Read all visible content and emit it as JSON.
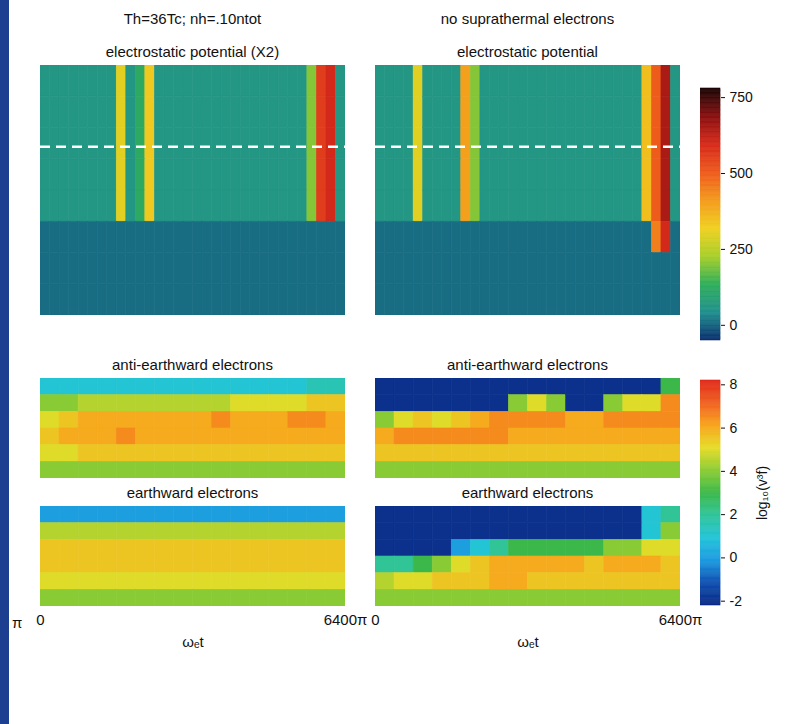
{
  "chart_data": [
    {
      "type": "heatmap",
      "header": "Th=36Tc; nh=.10ntot",
      "title": "electrostatic potential (X2)",
      "xlim": [
        0,
        6400
      ],
      "tick_labels": false,
      "color_range": [
        -50,
        780
      ],
      "bins": [
        0,
        200,
        400,
        600,
        800,
        1000,
        1200,
        1400,
        1600,
        1800,
        2000,
        2200,
        2400,
        2600,
        2800,
        3000,
        3200,
        3400,
        3600,
        3800,
        4000,
        4200,
        4400,
        4600,
        4800,
        5000,
        5200,
        5400,
        5600,
        5800,
        6000,
        6200,
        6400
      ],
      "reference_line": {
        "y": 2.6,
        "color": "white",
        "line_style": "dashed"
      },
      "cells": [
        [
          60,
          60,
          60,
          60,
          60,
          60,
          60,
          60,
          300,
          60,
          120,
          330,
          60,
          60,
          60,
          60,
          60,
          60,
          60,
          60,
          60,
          60,
          60,
          60,
          60,
          60,
          60,
          60,
          200,
          560,
          600,
          60
        ],
        [
          60,
          60,
          60,
          60,
          60,
          60,
          60,
          60,
          300,
          60,
          120,
          330,
          60,
          60,
          60,
          60,
          60,
          60,
          60,
          60,
          60,
          60,
          60,
          60,
          60,
          60,
          60,
          60,
          200,
          560,
          600,
          60
        ],
        [
          60,
          60,
          60,
          60,
          60,
          60,
          60,
          60,
          300,
          60,
          120,
          330,
          60,
          60,
          60,
          60,
          60,
          60,
          60,
          60,
          60,
          60,
          60,
          60,
          60,
          60,
          60,
          60,
          200,
          560,
          600,
          60
        ],
        [
          60,
          60,
          60,
          60,
          60,
          60,
          60,
          60,
          300,
          60,
          120,
          330,
          60,
          60,
          60,
          60,
          60,
          60,
          60,
          60,
          60,
          60,
          60,
          60,
          60,
          60,
          60,
          60,
          200,
          560,
          600,
          60
        ],
        [
          60,
          60,
          60,
          60,
          60,
          60,
          60,
          60,
          300,
          60,
          120,
          330,
          60,
          60,
          60,
          60,
          60,
          60,
          60,
          60,
          60,
          60,
          60,
          60,
          60,
          60,
          60,
          60,
          200,
          560,
          600,
          60
        ],
        [
          10,
          10,
          10,
          10,
          10,
          10,
          10,
          10,
          10,
          10,
          10,
          10,
          10,
          10,
          10,
          10,
          10,
          10,
          10,
          10,
          10,
          10,
          10,
          10,
          10,
          10,
          10,
          10,
          10,
          10,
          10,
          10
        ],
        [
          10,
          10,
          10,
          10,
          10,
          10,
          10,
          10,
          10,
          10,
          10,
          10,
          10,
          10,
          10,
          10,
          10,
          10,
          10,
          10,
          10,
          10,
          10,
          10,
          10,
          10,
          10,
          10,
          10,
          10,
          10,
          10
        ],
        [
          10,
          10,
          10,
          10,
          10,
          10,
          10,
          10,
          10,
          10,
          10,
          10,
          10,
          10,
          10,
          10,
          10,
          10,
          10,
          10,
          10,
          10,
          10,
          10,
          10,
          10,
          10,
          10,
          10,
          10,
          10,
          10
        ]
      ]
    },
    {
      "type": "heatmap",
      "header": "no suprathermal electrons",
      "title": "electrostatic potential",
      "xlim": [
        0,
        6400
      ],
      "tick_labels": false,
      "color_range": [
        -50,
        780
      ],
      "bins": [
        0,
        200,
        400,
        600,
        800,
        1000,
        1200,
        1400,
        1600,
        1800,
        2000,
        2200,
        2400,
        2600,
        2800,
        3000,
        3200,
        3400,
        3600,
        3800,
        4000,
        4200,
        4400,
        4600,
        4800,
        5000,
        5200,
        5400,
        5600,
        5800,
        6000,
        6200,
        6400
      ],
      "reference_line": {
        "y": 2.6,
        "color": "white",
        "line_style": "dashed"
      },
      "cells": [
        [
          60,
          60,
          60,
          60,
          300,
          60,
          60,
          60,
          60,
          400,
          200,
          60,
          60,
          60,
          60,
          60,
          60,
          60,
          60,
          60,
          60,
          60,
          60,
          60,
          60,
          60,
          60,
          60,
          350,
          500,
          650,
          60
        ],
        [
          60,
          60,
          60,
          60,
          300,
          60,
          60,
          60,
          60,
          400,
          200,
          60,
          60,
          60,
          60,
          60,
          60,
          60,
          60,
          60,
          60,
          60,
          60,
          60,
          60,
          60,
          60,
          60,
          350,
          500,
          650,
          60
        ],
        [
          60,
          60,
          60,
          60,
          300,
          60,
          60,
          60,
          60,
          400,
          200,
          60,
          60,
          60,
          60,
          60,
          60,
          60,
          60,
          60,
          60,
          60,
          60,
          60,
          60,
          60,
          60,
          60,
          350,
          500,
          650,
          60
        ],
        [
          60,
          60,
          60,
          60,
          300,
          60,
          60,
          60,
          60,
          400,
          200,
          60,
          60,
          60,
          60,
          60,
          60,
          60,
          60,
          60,
          60,
          60,
          60,
          60,
          60,
          60,
          60,
          60,
          350,
          500,
          650,
          60
        ],
        [
          60,
          60,
          60,
          60,
          300,
          60,
          60,
          60,
          60,
          400,
          200,
          60,
          60,
          60,
          60,
          60,
          60,
          60,
          60,
          60,
          60,
          60,
          60,
          60,
          60,
          60,
          60,
          60,
          350,
          500,
          650,
          60
        ],
        [
          10,
          10,
          10,
          10,
          10,
          10,
          10,
          10,
          10,
          10,
          10,
          10,
          10,
          10,
          10,
          10,
          10,
          10,
          10,
          10,
          10,
          10,
          10,
          10,
          10,
          10,
          10,
          10,
          10,
          450,
          600,
          10
        ],
        [
          10,
          10,
          10,
          10,
          10,
          10,
          10,
          10,
          10,
          10,
          10,
          10,
          10,
          10,
          10,
          10,
          10,
          10,
          10,
          10,
          10,
          10,
          10,
          10,
          10,
          10,
          10,
          10,
          10,
          10,
          10,
          10
        ],
        [
          10,
          10,
          10,
          10,
          10,
          10,
          10,
          10,
          10,
          10,
          10,
          10,
          10,
          10,
          10,
          10,
          10,
          10,
          10,
          10,
          10,
          10,
          10,
          10,
          10,
          10,
          10,
          10,
          10,
          10,
          10,
          10
        ]
      ]
    },
    {
      "type": "heatmap",
      "title": "anti-earthward electrons",
      "xlim": [
        0,
        6400
      ],
      "tick_labels": false,
      "color_range": [
        -2.2,
        8.2
      ],
      "bins": [
        0,
        400,
        800,
        1200,
        1600,
        2000,
        2400,
        2800,
        3200,
        3600,
        4000,
        4400,
        4800,
        5200,
        5600,
        6000,
        6400
      ],
      "cells": [
        [
          1,
          1,
          1,
          1,
          1,
          1,
          1,
          1,
          1,
          1,
          1,
          1,
          1,
          1,
          1.5,
          1.5
        ],
        [
          4,
          4,
          4.5,
          4.5,
          4.5,
          4.5,
          4.5,
          4.5,
          4.5,
          4.5,
          5,
          5,
          5,
          5,
          5.5,
          5.5
        ],
        [
          5,
          5.5,
          6,
          6,
          6,
          6,
          6,
          6,
          6,
          6.5,
          6,
          6,
          6,
          6.5,
          6.5,
          6
        ],
        [
          5.5,
          6,
          6,
          6,
          6.5,
          6,
          6,
          6,
          6,
          6,
          6,
          6,
          6,
          6,
          6,
          6
        ],
        [
          5,
          5,
          5.5,
          5.5,
          5.5,
          5.5,
          5.5,
          5.5,
          5.5,
          5.5,
          5.5,
          5.5,
          5.5,
          5.5,
          5.5,
          5.5
        ],
        [
          4,
          4,
          4,
          4,
          4,
          4,
          4,
          4,
          4,
          4,
          4,
          4,
          4,
          4,
          4,
          4
        ]
      ]
    },
    {
      "type": "heatmap",
      "title": "anti-earthward electrons",
      "xlim": [
        0,
        6400
      ],
      "tick_labels": false,
      "color_range": [
        -2.2,
        8.2
      ],
      "bins": [
        0,
        400,
        800,
        1200,
        1600,
        2000,
        2400,
        2800,
        3200,
        3600,
        4000,
        4400,
        4800,
        5200,
        5600,
        6000,
        6400
      ],
      "cells": [
        [
          -2,
          -2,
          -2,
          -2,
          -2,
          -2,
          -2,
          -2,
          -2,
          -2,
          -2,
          -2,
          -2,
          -2,
          -2,
          3
        ],
        [
          -2,
          -2,
          -2,
          -2,
          -2,
          -2,
          -2,
          4,
          5,
          4,
          -2,
          -2,
          4,
          5,
          5,
          6.5
        ],
        [
          4,
          5,
          5.5,
          5,
          5.5,
          6,
          6.5,
          6.5,
          6.5,
          6.5,
          6,
          6,
          6.5,
          6.5,
          6.5,
          6.5
        ],
        [
          6,
          6.5,
          6.5,
          6.5,
          6.5,
          6.5,
          6.5,
          6,
          6,
          6,
          6,
          6,
          6,
          6,
          6,
          6
        ],
        [
          5.5,
          5.5,
          5.5,
          5.5,
          5.5,
          5.5,
          5.5,
          5.5,
          5.5,
          5.5,
          5.5,
          5.5,
          5.5,
          5.5,
          5.5,
          5.5
        ],
        [
          4,
          4,
          4,
          4,
          4,
          4,
          4,
          4,
          4,
          4,
          4,
          4,
          4,
          4,
          4,
          4
        ]
      ]
    },
    {
      "type": "heatmap",
      "title": "earthward electrons",
      "xlim": [
        0,
        6400
      ],
      "tick_labels": "x",
      "xticks": [
        0,
        {
          "value": 6400,
          "label": "6400π"
        }
      ],
      "xlabel": "ωₑt",
      "annotations": [
        {
          "text": "π"
        }
      ],
      "color_range": [
        -2.2,
        8.2
      ],
      "bins": [
        0,
        400,
        800,
        1200,
        1600,
        2000,
        2400,
        2800,
        3200,
        3600,
        4000,
        4400,
        4800,
        5200,
        5600,
        6000,
        6400
      ],
      "cells": [
        [
          0,
          0,
          0,
          0,
          0,
          0,
          0,
          0,
          0,
          0,
          0,
          0,
          0,
          0,
          0,
          0
        ],
        [
          4.5,
          4.5,
          4.5,
          4.5,
          4.5,
          4.5,
          4.5,
          4.5,
          4.5,
          4.5,
          4.5,
          4.5,
          4.5,
          4.5,
          4.5,
          4.5
        ],
        [
          5.5,
          5.5,
          5.5,
          5.5,
          5.5,
          5.5,
          5.5,
          5.5,
          5.5,
          5.5,
          5.5,
          5.5,
          5.5,
          5.5,
          5.5,
          5.5
        ],
        [
          5.5,
          5.5,
          5.5,
          5.5,
          5.5,
          5.5,
          5.5,
          5.5,
          5.5,
          5.5,
          5.5,
          5.5,
          5.5,
          5.5,
          5.5,
          5.5
        ],
        [
          5,
          5,
          5,
          5,
          5,
          5,
          5,
          5,
          5,
          5,
          5,
          5,
          5,
          5,
          5,
          5
        ],
        [
          4,
          4,
          4,
          4,
          4,
          4,
          4,
          4,
          4,
          4,
          4,
          4,
          4,
          4,
          4,
          4
        ]
      ]
    },
    {
      "type": "heatmap",
      "title": "earthward electrons",
      "xlim": [
        0,
        6400
      ],
      "tick_labels": "x",
      "xticks": [
        0,
        {
          "value": 6400,
          "label": "6400π"
        }
      ],
      "xlabel": "ωₑt",
      "color_range": [
        -2.2,
        8.2
      ],
      "bins": [
        0,
        400,
        800,
        1200,
        1600,
        2000,
        2400,
        2800,
        3200,
        3600,
        4000,
        4400,
        4800,
        5200,
        5600,
        6000,
        6400
      ],
      "cells": [
        [
          -2,
          -2,
          -2,
          -2,
          -2,
          -2,
          -2,
          -2,
          -2,
          -2,
          -2,
          -2,
          -2,
          -2,
          1,
          2
        ],
        [
          -2,
          -2,
          -2,
          -2,
          -2,
          -2,
          -2,
          -2,
          -2,
          -2,
          -2,
          -2,
          -2,
          -2,
          1,
          4
        ],
        [
          -2,
          -2,
          -2,
          -2,
          0,
          1,
          2,
          3,
          3,
          3,
          3,
          3,
          4,
          4,
          5,
          5
        ],
        [
          2,
          2,
          3,
          4,
          5,
          5.5,
          6,
          6,
          6,
          6,
          6,
          5.5,
          6,
          6,
          6,
          5.5
        ],
        [
          4.5,
          5,
          5,
          5.5,
          5.5,
          5.5,
          6,
          6,
          5.5,
          5.5,
          5.5,
          5.5,
          5.5,
          5.5,
          5.5,
          5.5
        ],
        [
          4,
          4,
          4,
          4,
          4,
          4,
          4,
          4,
          4,
          4,
          4,
          4,
          4,
          4,
          4,
          4
        ]
      ]
    },
    {
      "type": "colorbar",
      "range": [
        -50,
        780
      ],
      "ticks": [
        0,
        250,
        500,
        750
      ]
    },
    {
      "type": "colorbar",
      "range": [
        -2.2,
        8.2
      ],
      "ticks": [
        -2,
        0,
        2,
        4,
        6,
        8
      ],
      "label": "log₁₀(v³f)"
    }
  ]
}
